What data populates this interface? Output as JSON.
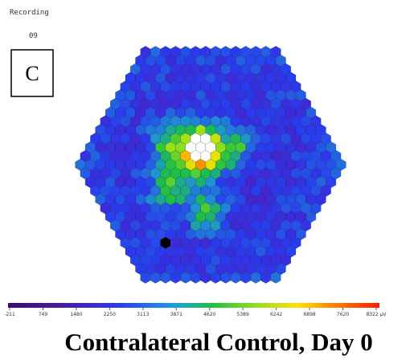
{
  "header": {
    "label": "Recording",
    "number": "09"
  },
  "panel": {
    "letter": "C"
  },
  "colorbar": {
    "ticks": [
      "-211",
      "749",
      "1480",
      "2250",
      "3113",
      "3871",
      "4620",
      "5389",
      "6242",
      "6898",
      "7620",
      "8322 µV"
    ]
  },
  "caption": "Contralateral Control, Day 0"
}
